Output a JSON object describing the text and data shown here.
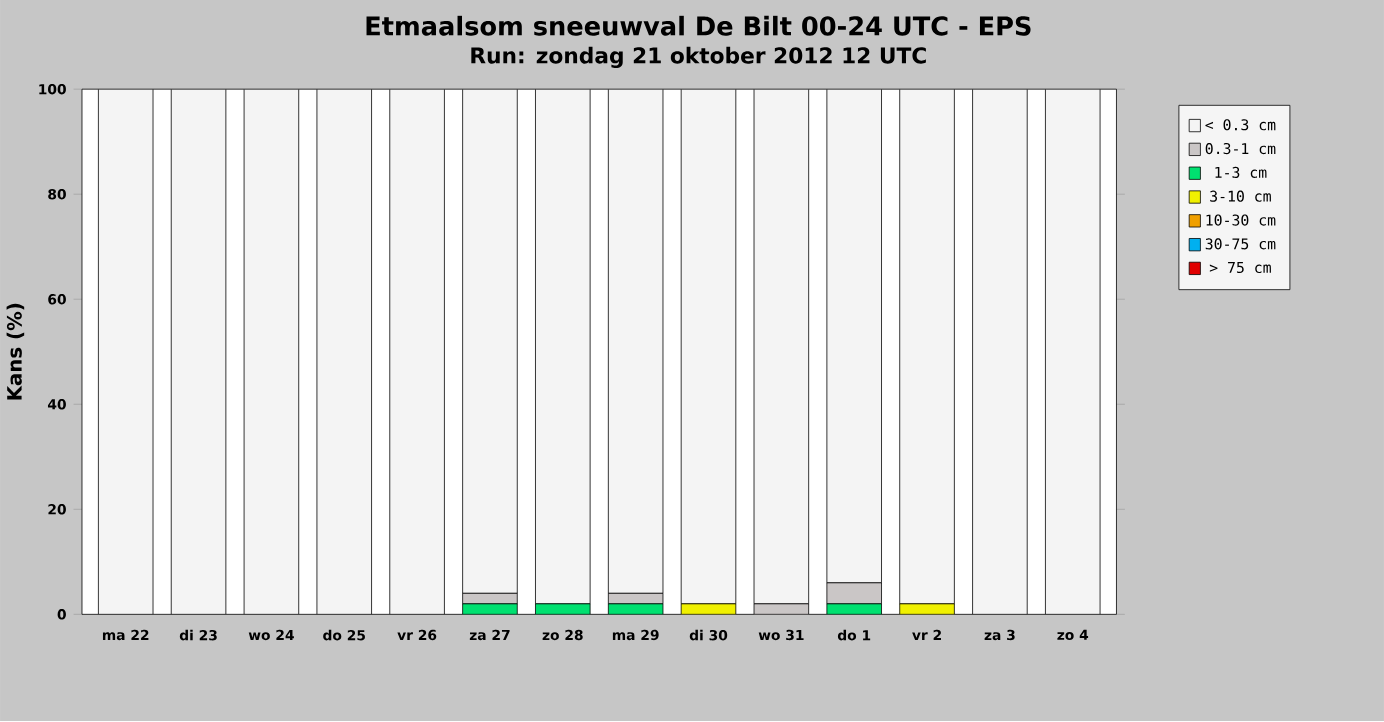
{
  "chart_data": {
    "type": "bar",
    "stacked": true,
    "title": "Etmaalsom sneeuwval De Bilt 00-24 UTC - EPS",
    "subtitle": "Run: zondag 21 oktober 2012   12 UTC",
    "ylabel": "Kans (%)",
    "categories": [
      "ma 22",
      "di 23",
      "wo 24",
      "do 25",
      "vr 26",
      "za 27",
      "zo 28",
      "ma 29",
      "di 30",
      "wo 31",
      "do 1",
      "vr 2",
      "za 3",
      "zo 4"
    ],
    "series": [
      {
        "name": "> 75 cm",
        "color": "#e00000",
        "values": [
          0,
          0,
          0,
          0,
          0,
          0,
          0,
          0,
          0,
          0,
          0,
          0,
          0,
          0
        ]
      },
      {
        "name": "30-75 cm",
        "color": "#00b0f0",
        "values": [
          0,
          0,
          0,
          0,
          0,
          0,
          0,
          0,
          0,
          0,
          0,
          0,
          0,
          0
        ]
      },
      {
        "name": "10-30 cm",
        "color": "#f0a000",
        "values": [
          0,
          0,
          0,
          0,
          0,
          0,
          0,
          0,
          0,
          0,
          0,
          0,
          0,
          0
        ]
      },
      {
        "name": "3-10 cm",
        "color": "#f0f000",
        "values": [
          0,
          0,
          0,
          0,
          0,
          0,
          0,
          0,
          2,
          0,
          0,
          2,
          0,
          0
        ]
      },
      {
        "name": "1-3 cm",
        "color": "#00e070",
        "values": [
          0,
          0,
          0,
          0,
          0,
          2,
          2,
          2,
          0,
          0,
          2,
          0,
          0,
          0
        ]
      },
      {
        "name": "0.3-1 cm",
        "color": "#cac6c6",
        "values": [
          0,
          0,
          0,
          0,
          0,
          2,
          0,
          2,
          0,
          2,
          4,
          0,
          0,
          0
        ]
      },
      {
        "name": "< 0.3 cm",
        "color": "#f4f4f4",
        "values": [
          100,
          100,
          100,
          100,
          100,
          96,
          98,
          96,
          98,
          98,
          94,
          98,
          100,
          100
        ]
      }
    ],
    "ylim": [
      0,
      100
    ],
    "yticks": [
      0,
      20,
      40,
      60,
      80,
      100
    ],
    "legend": "right"
  }
}
